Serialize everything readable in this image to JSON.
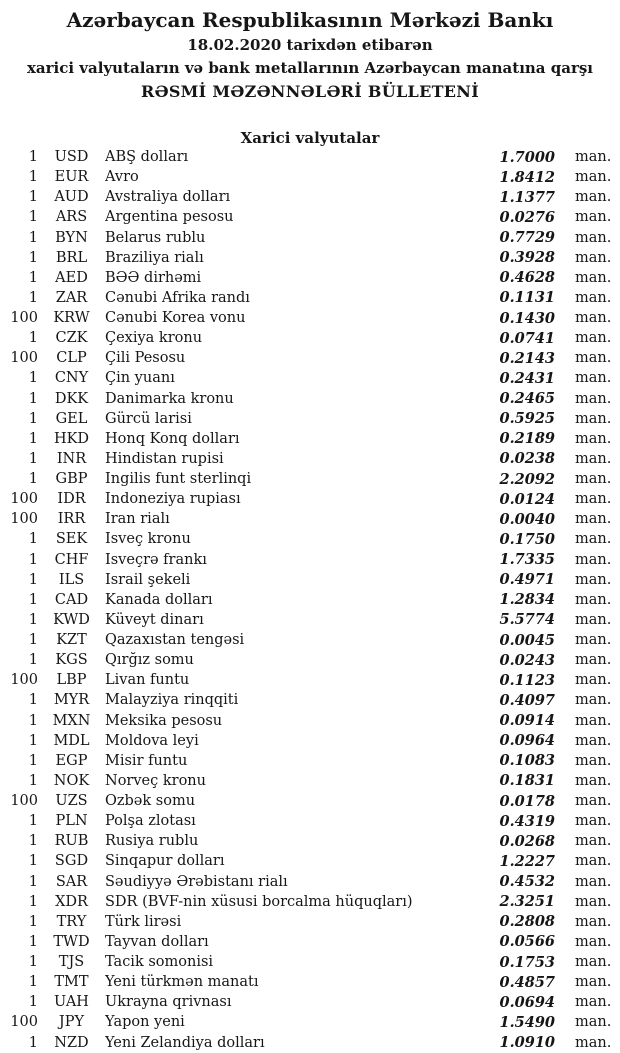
{
  "header": {
    "title": "Azərbaycan Respublikasının Mərkəzi Bankı",
    "date_line": "18.02.2020 tarixdən etibarən",
    "subtitle": "xarici valyutaların və bank metallarının Azərbaycan manatına qarşı",
    "bulletin_title": "RƏSMİ MƏZƏNNƏLƏRİ BÜLLETENİ"
  },
  "section": {
    "title": "Xarici valyutalar"
  },
  "unit_label": "man.",
  "rates": [
    {
      "qty": "1",
      "code": "USD",
      "name": "ABŞ dolları",
      "rate": "1.7000"
    },
    {
      "qty": "1",
      "code": "EUR",
      "name": "Avro",
      "rate": "1.8412"
    },
    {
      "qty": "1",
      "code": "AUD",
      "name": "Avstraliya dolları",
      "rate": "1.1377"
    },
    {
      "qty": "1",
      "code": "ARS",
      "name": "Argentina pesosu",
      "rate": "0.0276"
    },
    {
      "qty": "1",
      "code": "BYN",
      "name": "Belarus rublu",
      "rate": "0.7729"
    },
    {
      "qty": "1",
      "code": "BRL",
      "name": "Braziliya rialı",
      "rate": "0.3928"
    },
    {
      "qty": "1",
      "code": "AED",
      "name": "BƏƏ dirhəmi",
      "rate": "0.4628"
    },
    {
      "qty": "1",
      "code": "ZAR",
      "name": "Cənubi Afrika randı",
      "rate": "0.1131"
    },
    {
      "qty": "100",
      "code": "KRW",
      "name": "Cənubi Korea vonu",
      "rate": "0.1430"
    },
    {
      "qty": "1",
      "code": "CZK",
      "name": "Çexiya kronu",
      "rate": "0.0741"
    },
    {
      "qty": "100",
      "code": "CLP",
      "name": "Çili Pesosu",
      "rate": "0.2143"
    },
    {
      "qty": "1",
      "code": "CNY",
      "name": "Çin yuanı",
      "rate": "0.2431"
    },
    {
      "qty": "1",
      "code": "DKK",
      "name": "Danimarka kronu",
      "rate": "0.2465"
    },
    {
      "qty": "1",
      "code": "GEL",
      "name": "Gürcü larisi",
      "rate": "0.5925"
    },
    {
      "qty": "1",
      "code": "HKD",
      "name": "Honq Konq dolları",
      "rate": "0.2189"
    },
    {
      "qty": "1",
      "code": "INR",
      "name": "Hindistan rupisi",
      "rate": "0.0238"
    },
    {
      "qty": "1",
      "code": "GBP",
      "name": "İngilis funt sterlinqi",
      "rate": "2.2092"
    },
    {
      "qty": "100",
      "code": "IDR",
      "name": "İndoneziya rupiası",
      "rate": "0.0124"
    },
    {
      "qty": "100",
      "code": "IRR",
      "name": "İran rialı",
      "rate": "0.0040"
    },
    {
      "qty": "1",
      "code": "SEK",
      "name": "İsveç kronu",
      "rate": "0.1750"
    },
    {
      "qty": "1",
      "code": "CHF",
      "name": "İsveçrə frankı",
      "rate": "1.7335"
    },
    {
      "qty": "1",
      "code": "ILS",
      "name": "İsrail şekeli",
      "rate": "0.4971"
    },
    {
      "qty": "1",
      "code": "CAD",
      "name": "Kanada dolları",
      "rate": "1.2834"
    },
    {
      "qty": "1",
      "code": "KWD",
      "name": "Küveyt dinarı",
      "rate": "5.5774"
    },
    {
      "qty": "1",
      "code": "KZT",
      "name": "Qazaxıstan tengəsi",
      "rate": "0.0045"
    },
    {
      "qty": "1",
      "code": "KGS",
      "name": "Qırğız somu",
      "rate": "0.0243"
    },
    {
      "qty": "100",
      "code": "LBP",
      "name": "Livan funtu",
      "rate": "0.1123"
    },
    {
      "qty": "1",
      "code": "MYR",
      "name": "Malayziya rinqqiti",
      "rate": "0.4097"
    },
    {
      "qty": "1",
      "code": "MXN",
      "name": "Meksika pesosu",
      "rate": "0.0914"
    },
    {
      "qty": "1",
      "code": "MDL",
      "name": "Moldova leyi",
      "rate": "0.0964"
    },
    {
      "qty": "1",
      "code": "EGP",
      "name": "Misir funtu",
      "rate": "0.1083"
    },
    {
      "qty": "1",
      "code": "NOK",
      "name": "Norveç kronu",
      "rate": "0.1831"
    },
    {
      "qty": "100",
      "code": "UZS",
      "name": "Özbək somu",
      "rate": "0.0178"
    },
    {
      "qty": "1",
      "code": "PLN",
      "name": "Polşa zlotası",
      "rate": "0.4319"
    },
    {
      "qty": "1",
      "code": "RUB",
      "name": "Rusiya rublu",
      "rate": "0.0268"
    },
    {
      "qty": "1",
      "code": "SGD",
      "name": "Sinqapur dolları",
      "rate": "1.2227"
    },
    {
      "qty": "1",
      "code": "SAR",
      "name": "Səudiyyə Ərəbistanı rialı",
      "rate": "0.4532"
    },
    {
      "qty": "1",
      "code": "XDR",
      "name": "SDR (BVF-nin xüsusi borcalma hüquqları)",
      "rate": "2.3251"
    },
    {
      "qty": "1",
      "code": "TRY",
      "name": "Türk lirəsi",
      "rate": "0.2808"
    },
    {
      "qty": "1",
      "code": "TWD",
      "name": "Tayvan dolları",
      "rate": "0.0566"
    },
    {
      "qty": "1",
      "code": "TJS",
      "name": "Tacik somonisi",
      "rate": "0.1753"
    },
    {
      "qty": "1",
      "code": "TMT",
      "name": "Yeni türkmən manatı",
      "rate": "0.4857"
    },
    {
      "qty": "1",
      "code": "UAH",
      "name": "Ukrayna qrivnası",
      "rate": "0.0694"
    },
    {
      "qty": "100",
      "code": "JPY",
      "name": "Yapon yeni",
      "rate": "1.5490"
    },
    {
      "qty": "1",
      "code": "NZD",
      "name": "Yeni Zelandiya dolları",
      "rate": "1.0910"
    }
  ]
}
